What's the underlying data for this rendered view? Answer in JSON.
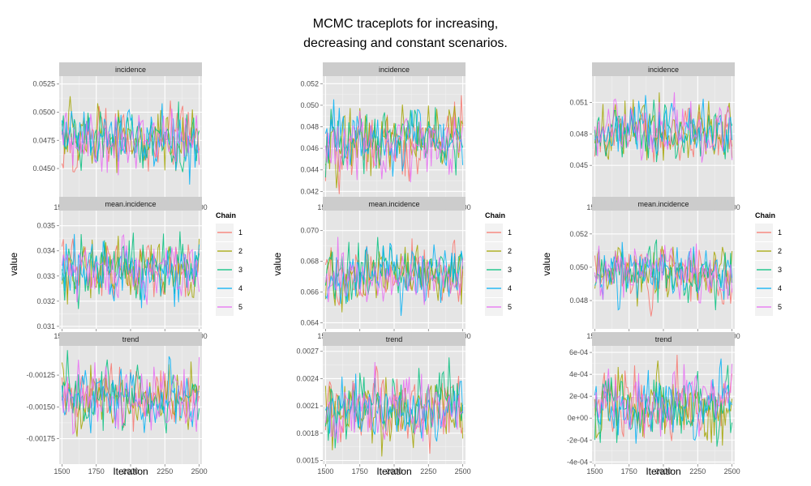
{
  "title_lines": [
    "MCMC traceplots for increasing,",
    "decreasing and constant scenarios."
  ],
  "legend": {
    "title": "Chain",
    "entries": [
      "1",
      "2",
      "3",
      "4",
      "5"
    ],
    "colors": [
      "#F8766D",
      "#A3A500",
      "#00BF7D",
      "#00B0F6",
      "#E76BF3"
    ]
  },
  "chart_data": [
    {
      "type": "line",
      "column": 1,
      "xlabel": "Iteration",
      "ylabel": "value",
      "xlim": [
        1480,
        2520
      ],
      "x_ticks": [
        1500,
        1750,
        2000,
        2250,
        2500
      ],
      "x_tick_labels": [
        "1500",
        "1750",
        "2000",
        "2250",
        "2500"
      ],
      "panels": [
        {
          "strip": "incidence",
          "ylim": [
            0.0422,
            0.0532
          ],
          "center": 0.0475,
          "spread": 0.0013,
          "seed": 11,
          "y_ticks": [
            0.045,
            0.0475,
            0.05,
            0.0525
          ],
          "y_tick_labels": [
            "0.0450",
            "0.0475",
            "0.0500",
            "0.0525"
          ]
        },
        {
          "strip": "mean.incidence",
          "ylim": [
            0.0309,
            0.0356
          ],
          "center": 0.0332,
          "spread": 0.0006,
          "seed": 12,
          "y_ticks": [
            0.031,
            0.032,
            0.033,
            0.034,
            0.035
          ],
          "y_tick_labels": [
            "0.031",
            "0.032",
            "0.033",
            "0.034",
            "0.035"
          ]
        },
        {
          "strip": "trend",
          "ylim": [
            -0.00195,
            -0.00102
          ],
          "center": -0.00143,
          "spread": 0.00012,
          "seed": 13,
          "y_ticks": [
            -0.00175,
            -0.0015,
            -0.00125
          ],
          "y_tick_labels": [
            "-0.00175",
            "-0.00150",
            "-0.00125"
          ]
        }
      ]
    },
    {
      "type": "line",
      "column": 2,
      "xlabel": "Iteration",
      "ylabel": "value",
      "xlim": [
        1480,
        2520
      ],
      "x_ticks": [
        1500,
        1750,
        2000,
        2250,
        2500
      ],
      "x_tick_labels": [
        "1500",
        "1750",
        "2000",
        "2250",
        "2500"
      ],
      "panels": [
        {
          "strip": "incidence",
          "ylim": [
            0.0412,
            0.0527
          ],
          "center": 0.0468,
          "spread": 0.0015,
          "seed": 21,
          "y_ticks": [
            0.042,
            0.044,
            0.046,
            0.048,
            0.05,
            0.052
          ],
          "y_tick_labels": [
            "0.042",
            "0.044",
            "0.046",
            "0.048",
            "0.050",
            "0.052"
          ]
        },
        {
          "strip": "mean.incidence",
          "ylim": [
            0.0636,
            0.0713
          ],
          "center": 0.0672,
          "spread": 0.0009,
          "seed": 22,
          "y_ticks": [
            0.064,
            0.066,
            0.068,
            0.07
          ],
          "y_tick_labels": [
            "0.064",
            "0.066",
            "0.068",
            "0.070"
          ]
        },
        {
          "strip": "trend",
          "ylim": [
            0.00146,
            0.00276
          ],
          "center": 0.00208,
          "spread": 0.00018,
          "seed": 23,
          "y_ticks": [
            0.0015,
            0.0018,
            0.0021,
            0.0024,
            0.0027
          ],
          "y_tick_labels": [
            "0.0015",
            "0.0018",
            "0.0021",
            "0.0024",
            "0.0027"
          ]
        }
      ]
    },
    {
      "type": "line",
      "column": 3,
      "xlabel": "Iteration",
      "ylabel": "value",
      "xlim": [
        1480,
        2520
      ],
      "x_ticks": [
        1500,
        1750,
        2000,
        2250,
        2500
      ],
      "x_tick_labels": [
        "1500",
        "1750",
        "2000",
        "2250",
        "2500"
      ],
      "panels": [
        {
          "strip": "incidence",
          "ylim": [
            0.0417,
            0.0535
          ],
          "center": 0.0482,
          "spread": 0.0013,
          "seed": 31,
          "y_ticks": [
            0.045,
            0.048,
            0.051
          ],
          "y_tick_labels": [
            "0.045",
            "0.048",
            "0.051"
          ]
        },
        {
          "strip": "mean.incidence",
          "ylim": [
            0.0463,
            0.0534
          ],
          "center": 0.0496,
          "spread": 0.0008,
          "seed": 32,
          "y_ticks": [
            0.048,
            0.05,
            0.052
          ],
          "y_tick_labels": [
            "0.048",
            "0.050",
            "0.052"
          ]
        },
        {
          "strip": "trend",
          "ylim": [
            -0.00042,
            0.00066
          ],
          "center": 0.00012,
          "spread": 0.00015,
          "seed": 33,
          "y_ticks": [
            -0.0004,
            -0.0002,
            0,
            0.0002,
            0.0004,
            0.0006
          ],
          "y_tick_labels": [
            "-4e-04",
            "-2e-04",
            "0e+00",
            "2e-04",
            "4e-04",
            "6e-04"
          ]
        }
      ]
    }
  ]
}
